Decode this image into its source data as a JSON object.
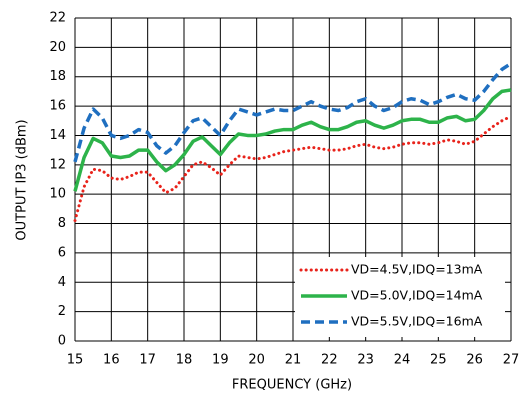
{
  "chart_data": {
    "type": "line",
    "x_label": "FREQUENCY (GHz)",
    "y_label": "OUTPUT IP3 (dBm)",
    "x": [
      15,
      15.25,
      15.5,
      15.75,
      16,
      16.25,
      16.5,
      16.75,
      17,
      17.25,
      17.5,
      17.75,
      18,
      18.25,
      18.5,
      18.75,
      19,
      19.25,
      19.5,
      19.75,
      20,
      20.25,
      20.5,
      20.75,
      21,
      21.25,
      21.5,
      21.75,
      22,
      22.25,
      22.5,
      22.75,
      23,
      23.25,
      23.5,
      23.75,
      24,
      24.25,
      24.5,
      24.75,
      25,
      25.25,
      25.5,
      25.75,
      26,
      26.25,
      26.5,
      26.75,
      27
    ],
    "series": [
      {
        "name": "VD=4.5V,IDQ=13mA",
        "color": "#e8231b",
        "line_style": "dotted",
        "values": [
          8.2,
          10.5,
          11.7,
          11.6,
          11.1,
          11.0,
          11.2,
          11.5,
          11.5,
          10.8,
          10.1,
          10.4,
          11.2,
          12.0,
          12.2,
          11.8,
          11.3,
          12.0,
          12.6,
          12.5,
          12.4,
          12.5,
          12.7,
          12.9,
          13.0,
          13.1,
          13.2,
          13.1,
          13.0,
          13.0,
          13.1,
          13.3,
          13.4,
          13.2,
          13.1,
          13.2,
          13.4,
          13.5,
          13.5,
          13.4,
          13.5,
          13.7,
          13.6,
          13.4,
          13.6,
          14.1,
          14.6,
          15.0,
          15.3
        ]
      },
      {
        "name": "VD=5.0V,IDQ=14mA",
        "color": "#2db34a",
        "line_style": "solid",
        "values": [
          10.2,
          12.5,
          13.8,
          13.5,
          12.6,
          12.5,
          12.6,
          13.0,
          13.0,
          12.2,
          11.6,
          12.0,
          12.7,
          13.6,
          13.9,
          13.3,
          12.7,
          13.5,
          14.1,
          14.0,
          14.0,
          14.1,
          14.3,
          14.4,
          14.4,
          14.7,
          14.9,
          14.6,
          14.4,
          14.4,
          14.6,
          14.9,
          15.0,
          14.7,
          14.5,
          14.7,
          15.0,
          15.1,
          15.1,
          14.9,
          14.9,
          15.2,
          15.3,
          15.0,
          15.1,
          15.7,
          16.5,
          17.0,
          17.1
        ]
      },
      {
        "name": "VD=5.5V,IDQ=16mA",
        "color": "#1f6fc0",
        "line_style": "dashed",
        "values": [
          12.2,
          14.5,
          15.8,
          15.2,
          14.0,
          13.8,
          14.0,
          14.4,
          14.2,
          13.3,
          12.8,
          13.3,
          14.2,
          15.0,
          15.2,
          14.6,
          14.0,
          15.0,
          15.8,
          15.6,
          15.4,
          15.6,
          15.8,
          15.7,
          15.7,
          16.0,
          16.3,
          16.0,
          15.8,
          15.7,
          15.9,
          16.3,
          16.5,
          16.0,
          15.7,
          15.9,
          16.3,
          16.5,
          16.4,
          16.1,
          16.3,
          16.6,
          16.8,
          16.5,
          16.4,
          17.0,
          17.8,
          18.5,
          18.9
        ]
      }
    ],
    "xlim": [
      15,
      27
    ],
    "xticks": [
      15,
      16,
      17,
      18,
      19,
      20,
      21,
      22,
      23,
      24,
      25,
      26,
      27
    ],
    "ylim": [
      0,
      22
    ],
    "yticks": [
      0,
      2,
      4,
      6,
      8,
      10,
      12,
      14,
      16,
      18,
      20,
      22
    ],
    "grid": true,
    "legend": "lower right"
  }
}
